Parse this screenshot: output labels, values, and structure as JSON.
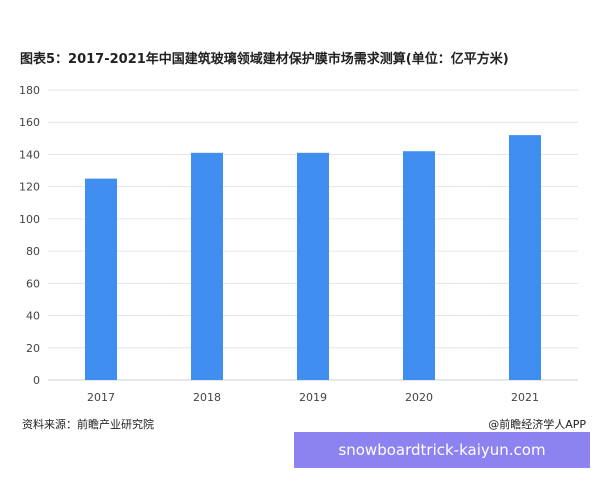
{
  "title": "图表5：2017-2021年中国建筑玻璃领域建材保护膜市场需求测算(单位：亿平方米)",
  "source": "资料来源：前瞻产业研究院",
  "credit": "@前瞻经济学人APP",
  "banner_text": "snowboardtrick-kaiyun.com",
  "colors": {
    "bar": "#3f8ef0",
    "grid": "#e6e6e6",
    "axis": "#cfcfcf",
    "banner": "#8c82f0"
  },
  "chart_data": {
    "type": "bar",
    "categories": [
      "2017",
      "2018",
      "2019",
      "2020",
      "2021"
    ],
    "values": [
      125,
      141,
      141,
      142,
      152
    ],
    "title": "图表5：2017-2021年中国建筑玻璃领域建材保护膜市场需求测算(单位：亿平方米)",
    "xlabel": "",
    "ylabel": "",
    "ylim": [
      0,
      180
    ],
    "yticks": [
      0,
      20,
      40,
      60,
      80,
      100,
      120,
      140,
      160,
      180
    ],
    "grid": true,
    "legend": "none"
  }
}
